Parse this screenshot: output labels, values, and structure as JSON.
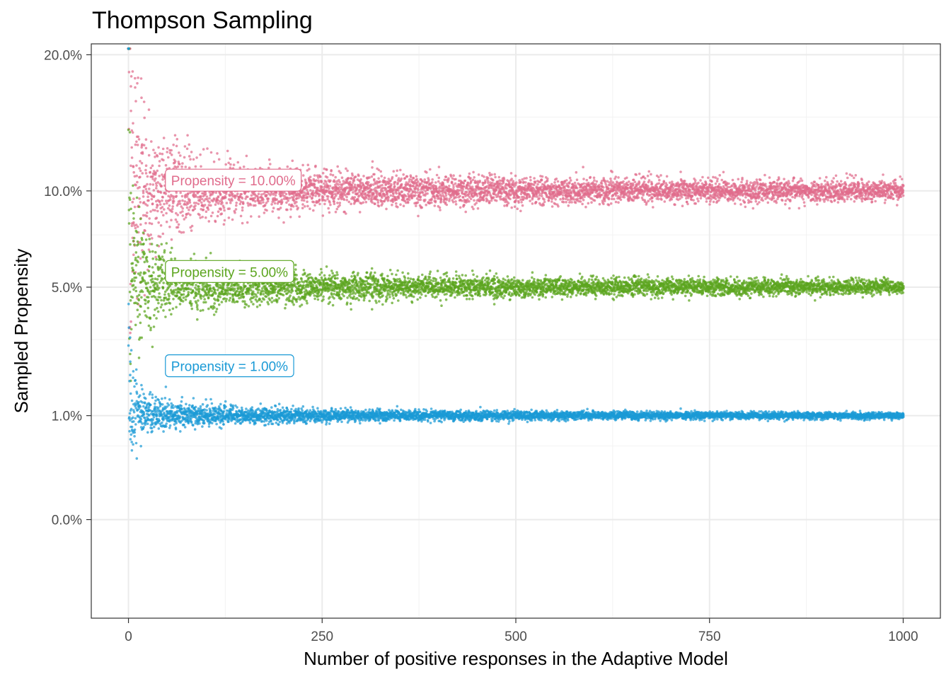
{
  "chart_data": {
    "type": "scatter",
    "title": "Thompson Sampling",
    "xlabel": "Number of positive responses in the Adaptive Model",
    "ylabel": "Sampled Propensity",
    "xlim": [
      -48,
      1048
    ],
    "ylim": [
      -0.009,
      0.2095
    ],
    "y_scale": "sqrt",
    "grid": true,
    "legend": "none",
    "x_ticks": [
      {
        "value": 0,
        "label": "0"
      },
      {
        "value": 250,
        "label": "250"
      },
      {
        "value": 500,
        "label": "500"
      },
      {
        "value": 750,
        "label": "750"
      },
      {
        "value": 1000,
        "label": "1000"
      }
    ],
    "y_ticks": [
      {
        "value": 0.0,
        "label": "0.0%"
      },
      {
        "value": 0.01,
        "label": "1.0%"
      },
      {
        "value": 0.05,
        "label": "5.0%"
      },
      {
        "value": 0.1,
        "label": "10.0%"
      },
      {
        "value": 0.2,
        "label": "20.0%"
      }
    ],
    "series": [
      {
        "propensity": 0.1,
        "color": "#e06c8c",
        "points_per_x": 5,
        "x_range": [
          0,
          1000
        ]
      },
      {
        "propensity": 0.05,
        "color": "#5ca51e",
        "points_per_x": 5,
        "x_range": [
          0,
          1000
        ]
      },
      {
        "propensity": 0.01,
        "color": "#1a9ad6",
        "points_per_x": 5,
        "x_range": [
          0,
          1000
        ]
      }
    ],
    "annotations": [
      {
        "label": "Propensity = 10.00%",
        "x": 55,
        "y": 0.106,
        "color": "#e06c8c"
      },
      {
        "label": "Propensity = 5.00%",
        "x": 55,
        "y": 0.0565,
        "color": "#5ca51e"
      },
      {
        "label": "Propensity = 1.00%",
        "x": 55,
        "y": 0.0216,
        "color": "#1a9ad6"
      }
    ]
  }
}
